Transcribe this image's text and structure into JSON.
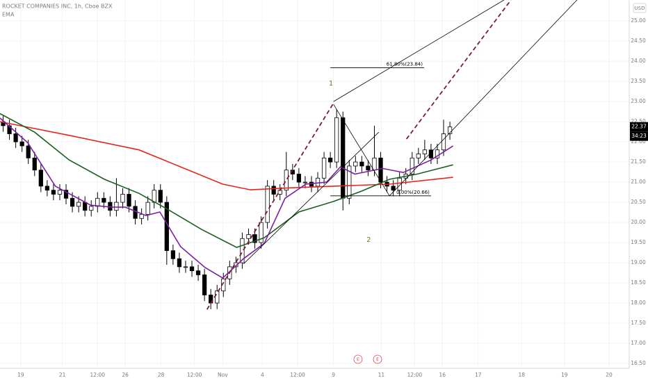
{
  "chart_data": {
    "type": "candlestick",
    "title": "ROCKET COMPANIES INC, 1h, Cboe BZX",
    "indicator_label": "EMA",
    "currency": "USD",
    "countdown": "34:23",
    "xlim": [
      0,
      100
    ],
    "ylim": [
      16.38,
      25.52
    ],
    "grid": true,
    "xticks": [
      {
        "value": 3.3,
        "label": "19"
      },
      {
        "value": 9.9,
        "label": "21"
      },
      {
        "value": 15.5,
        "label": "12:00"
      },
      {
        "value": 19.9,
        "label": "26"
      },
      {
        "value": 25.6,
        "label": "28"
      },
      {
        "value": 30.9,
        "label": "12:00"
      },
      {
        "value": 35.4,
        "label": "Nov"
      },
      {
        "value": 41.7,
        "label": "4"
      },
      {
        "value": 47.3,
        "label": "12:00"
      },
      {
        "value": 53.0,
        "label": "9"
      },
      {
        "value": 60.6,
        "label": "11"
      },
      {
        "value": 65.9,
        "label": "12:00"
      },
      {
        "value": 70.3,
        "label": "16"
      },
      {
        "value": 76.0,
        "label": "17"
      },
      {
        "value": 82.9,
        "label": "18"
      },
      {
        "value": 89.7,
        "label": "19"
      },
      {
        "value": 96.8,
        "label": "20"
      }
    ],
    "yticks": [
      {
        "value": 16.5,
        "label": "16.50"
      },
      {
        "value": 17,
        "label": "17.00"
      },
      {
        "value": 17.5,
        "label": "17.50"
      },
      {
        "value": 18,
        "label": "18.00"
      },
      {
        "value": 18.5,
        "label": "18.50"
      },
      {
        "value": 19,
        "label": "19.00"
      },
      {
        "value": 19.5,
        "label": "19.50"
      },
      {
        "value": 20,
        "label": "20.00"
      },
      {
        "value": 20.5,
        "label": "20.50"
      },
      {
        "value": 21,
        "label": "21.00"
      },
      {
        "value": 21.5,
        "label": "21.50"
      },
      {
        "value": 22,
        "label": "22.00"
      },
      {
        "value": 22.5,
        "label": "22.50"
      },
      {
        "value": 23,
        "label": "23.00"
      },
      {
        "value": 23.5,
        "label": "23.50"
      },
      {
        "value": 24,
        "label": "24.00"
      },
      {
        "value": 24.5,
        "label": "24.50"
      },
      {
        "value": 25,
        "label": "25.00"
      }
    ],
    "up_color": "#ffffff",
    "down_color": "#000000",
    "candles": {
      "open": [
        22.5,
        22.4,
        22.2,
        22.0,
        21.9,
        21.6,
        21.3,
        20.9,
        20.8,
        20.7,
        20.8,
        20.6,
        20.4,
        20.5,
        20.3,
        20.4,
        20.6,
        20.5,
        20.3,
        20.5,
        20.7,
        20.4,
        20.1,
        20.2,
        20.5,
        20.8,
        20.5,
        19.3,
        19.1,
        18.9,
        18.9,
        18.8,
        18.7,
        18.2,
        18.0,
        18.3,
        18.6,
        18.9,
        19.0,
        19.6,
        19.7,
        19.5,
        20.0,
        20.9,
        20.7,
        20.8,
        21.3,
        21.2,
        21.0,
        21.0,
        20.9,
        21.1,
        21.6,
        21.5,
        22.6,
        20.6,
        21.4,
        21.5,
        21.4,
        21.3,
        21.6,
        21.0,
        20.9,
        20.8,
        21.1,
        21.2,
        21.6,
        21.7,
        21.8,
        21.6,
        21.8,
        22.2
      ],
      "high": [
        22.65,
        22.55,
        22.35,
        22.15,
        22.05,
        21.75,
        21.45,
        21.05,
        20.95,
        20.95,
        20.95,
        20.75,
        20.65,
        20.65,
        20.55,
        20.75,
        20.75,
        20.65,
        21.1,
        20.85,
        20.85,
        20.55,
        20.35,
        20.65,
        20.95,
        20.95,
        20.65,
        19.45,
        19.25,
        19.05,
        19.05,
        18.95,
        18.85,
        18.35,
        18.45,
        18.75,
        19.05,
        19.15,
        19.75,
        19.85,
        19.85,
        20.15,
        21.05,
        21.05,
        20.95,
        21.75,
        21.45,
        21.35,
        21.15,
        21.15,
        21.25,
        21.75,
        21.75,
        22.8,
        22.75,
        21.55,
        21.65,
        21.65,
        21.55,
        22.4,
        21.75,
        21.15,
        21.05,
        21.25,
        21.35,
        21.75,
        21.85,
        22.05,
        21.95,
        21.95,
        22.55,
        22.5
      ],
      "low": [
        22.25,
        22.05,
        21.85,
        21.75,
        21.45,
        21.15,
        20.75,
        20.65,
        20.55,
        20.55,
        20.45,
        20.25,
        20.25,
        20.15,
        20.15,
        20.25,
        20.35,
        20.15,
        20.15,
        20.35,
        20.25,
        19.95,
        19.95,
        20.05,
        20.35,
        20.35,
        18.95,
        18.95,
        18.75,
        18.75,
        18.65,
        18.55,
        18.05,
        17.85,
        17.85,
        18.15,
        18.45,
        18.75,
        18.85,
        19.45,
        19.35,
        19.35,
        19.85,
        20.55,
        20.55,
        20.65,
        21.05,
        20.85,
        20.85,
        20.75,
        20.75,
        20.95,
        21.35,
        21.35,
        20.3,
        20.45,
        21.25,
        21.25,
        21.15,
        21.15,
        20.85,
        20.75,
        20.65,
        20.65,
        20.95,
        21.05,
        21.45,
        21.55,
        21.45,
        21.45,
        21.65,
        22.05
      ],
      "close": [
        22.4,
        22.2,
        22.0,
        21.9,
        21.6,
        21.3,
        20.9,
        20.8,
        20.7,
        20.8,
        20.6,
        20.4,
        20.5,
        20.3,
        20.4,
        20.6,
        20.5,
        20.3,
        20.5,
        20.7,
        20.4,
        20.1,
        20.2,
        20.5,
        20.8,
        20.5,
        19.3,
        19.1,
        18.9,
        18.9,
        18.8,
        18.7,
        18.2,
        18.0,
        18.3,
        18.6,
        18.9,
        19.0,
        19.6,
        19.7,
        19.5,
        20.0,
        20.9,
        20.7,
        20.8,
        21.3,
        21.2,
        21.0,
        21.0,
        20.9,
        21.1,
        21.6,
        21.5,
        22.6,
        20.6,
        21.4,
        21.5,
        21.4,
        21.3,
        21.6,
        21.0,
        20.9,
        20.8,
        21.1,
        21.2,
        21.6,
        21.7,
        21.8,
        21.6,
        21.8,
        22.2,
        22.37
      ]
    },
    "lines": [
      {
        "color": "#e8241c",
        "x": [
          0,
          11,
          22.1,
          28.7,
          35.4,
          39.8,
          46.4,
          53,
          61.9,
          72
        ],
        "values": [
          22.5,
          22.16,
          21.8,
          21.38,
          20.95,
          20.81,
          20.86,
          20.9,
          20.95,
          21.12
        ]
      },
      {
        "color": "#1b5e20",
        "x": [
          0,
          5.5,
          11,
          16.6,
          22.1,
          26.5,
          32,
          37.6,
          42,
          47.5,
          53,
          57.5,
          61.9,
          66.3,
          72
        ],
        "values": [
          22.7,
          22.24,
          21.55,
          21.07,
          20.72,
          20.34,
          19.83,
          19.38,
          19.62,
          20.26,
          20.52,
          20.78,
          21.07,
          21.2,
          21.43
        ]
      },
      {
        "color": "#7b1fa2",
        "x": [
          0,
          4.4,
          8.8,
          14.4,
          17.7,
          19.9,
          23.2,
          25.4,
          28.7,
          32.6,
          35.4,
          38.7,
          42,
          45.3,
          48.6,
          51.9,
          54.1,
          56.4,
          60.8,
          64.1,
          68.5,
          72
        ],
        "values": [
          22.59,
          21.98,
          20.9,
          20.43,
          20.38,
          20.38,
          20.17,
          20.26,
          19.4,
          18.88,
          18.62,
          19.1,
          19.48,
          20.6,
          20.95,
          21.0,
          21.38,
          21.2,
          21.34,
          21.24,
          21.55,
          21.9
        ]
      }
    ],
    "drawings": [
      {
        "x": [
          53,
          80.1
        ],
        "values": [
          23.0,
          25.52
        ],
        "color": "#000000",
        "dashed": false
      },
      {
        "x": [
          61.9,
          91.7
        ],
        "values": [
          20.66,
          25.52
        ],
        "color": "#000000",
        "dashed": false
      },
      {
        "x": [
          32.9,
          53
        ],
        "values": [
          17.84,
          22.96
        ],
        "color": "#7a1c2c",
        "dashed": true
      },
      {
        "x": [
          64.6,
          81.2
        ],
        "values": [
          22.07,
          25.52
        ],
        "color": "#7a1c2c",
        "dashed": true
      },
      {
        "x": [
          53,
          61.9
        ],
        "values": [
          22.93,
          20.66
        ],
        "color": "#000000",
        "dashed": false
      },
      {
        "x": [
          38.7,
          60.2
        ],
        "values": [
          18.97,
          22.24
        ],
        "color": "#000000",
        "dashed": false
      }
    ],
    "fib_levels": [
      {
        "x": [
          52.5,
          67.4
        ],
        "price": 23.84,
        "label": "61.80%(23.84)"
      },
      {
        "x": [
          52.5,
          68.5
        ],
        "price": 20.66,
        "label": "0.00%(20.66)"
      }
    ],
    "wave_labels": [
      {
        "text": "1",
        "x": 52.6,
        "price": 23.45
      },
      {
        "text": "2",
        "x": 58.6,
        "price": 19.57
      }
    ],
    "events": [
      {
        "text": "E",
        "x": 56.9
      },
      {
        "text": "E",
        "x": 60.0
      }
    ]
  }
}
